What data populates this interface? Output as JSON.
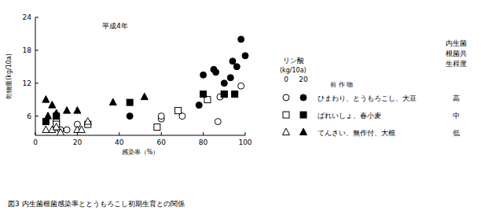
{
  "chart_data": {
    "type": "scatter",
    "title": "平成4年",
    "caption": "図3 内生菌根菌感染率ととうもろこし初期生育との関係",
    "x_label": "感染率（%）",
    "y_label": "乾物重(kg/10a)",
    "xlim": [
      0,
      100
    ],
    "xticks": [
      0,
      20,
      40,
      60,
      80,
      100
    ],
    "ylim": [
      2.5,
      24
    ],
    "yticks": [
      6,
      12,
      18,
      24
    ],
    "grid": false,
    "legend_title": "リン酸",
    "legend_unit": "(kg/10a)",
    "legend_crop_header": "前 作 物",
    "legend_level_header": "内生菌根菌共生程度",
    "series": [
      {
        "name": "ひまわり、とうもろこし、大豆",
        "phosphate": 0,
        "symbiosis": "高",
        "marker": "circle-open",
        "color": "#000000",
        "x": [
          10,
          12,
          15,
          20,
          60,
          60,
          70,
          87,
          88,
          95,
          98
        ],
        "values": [
          4,
          3.5,
          3.5,
          4.5,
          5.5,
          6,
          6,
          5,
          9.5,
          10,
          11.5
        ]
      },
      {
        "name": "ひまわり、とうもろこし、大豆",
        "phosphate": 20,
        "symbiosis": "高",
        "marker": "circle-filled",
        "color": "#000000",
        "x": [
          45,
          78,
          80,
          85,
          86,
          90,
          93,
          94,
          96,
          98,
          100
        ],
        "values": [
          6,
          8,
          13.5,
          14.5,
          14,
          12,
          13,
          16,
          15,
          20,
          17
        ]
      },
      {
        "name": "ばれいしょ、春小麦",
        "phosphate": 0,
        "symbiosis": "中",
        "marker": "square-open",
        "color": "#000000",
        "x": [
          10,
          10,
          25,
          58,
          68,
          82,
          90
        ],
        "values": [
          5,
          4.5,
          4.5,
          4,
          7,
          9,
          10
        ]
      },
      {
        "name": "ばれいしょ、春小麦",
        "phosphate": 20,
        "symbiosis": "中",
        "marker": "square-filled",
        "color": "#000000",
        "x": [
          5,
          10,
          45,
          80,
          90,
          95
        ],
        "values": [
          5,
          6,
          8.5,
          10,
          10,
          10
        ]
      },
      {
        "name": "てんさい、無作付、大根",
        "phosphate": 0,
        "symbiosis": "低",
        "marker": "triangle-open",
        "color": "#000000",
        "x": [
          5,
          8,
          10,
          12,
          20,
          22,
          25
        ],
        "values": [
          3.5,
          3.5,
          4,
          3,
          3.5,
          3.5,
          5
        ]
      },
      {
        "name": "てんさい、無作付、大根",
        "phosphate": 20,
        "symbiosis": "低",
        "marker": "triangle-filled",
        "color": "#000000",
        "x": [
          5,
          6,
          8,
          10,
          15,
          20,
          37,
          52
        ],
        "values": [
          9,
          6,
          8,
          6.5,
          7,
          7,
          8.5,
          9.5
        ]
      }
    ]
  }
}
